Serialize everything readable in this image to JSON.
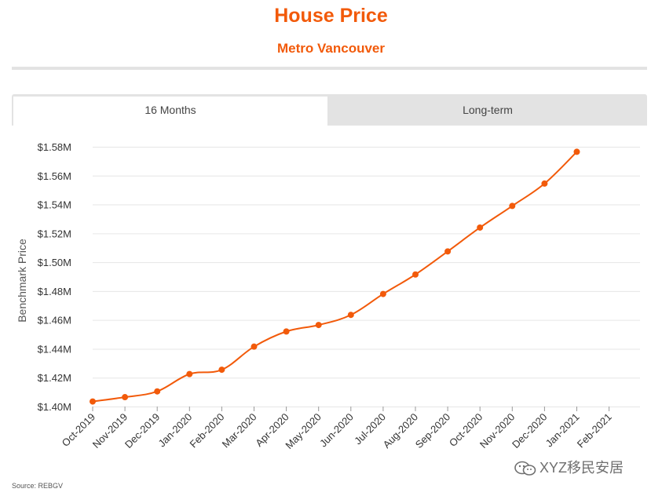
{
  "header": {
    "title": "House Price",
    "subtitle": "Metro Vancouver"
  },
  "tabs": [
    {
      "label": "16 Months",
      "active": true
    },
    {
      "label": "Long-term",
      "active": false
    }
  ],
  "footer": {
    "source": "Source: REBGV",
    "watermark": "XYZ移民安居"
  },
  "colors": {
    "accent": "#f25a0a",
    "grid": "#e6e6e6",
    "tab_bg": "#e3e3e3"
  },
  "chart_data": {
    "type": "line",
    "title": "",
    "xlabel": "",
    "ylabel": "Benchmark Price",
    "categories": [
      "Oct-2019",
      "Nov-2019",
      "Dec-2019",
      "Jan-2020",
      "Feb-2020",
      "Mar-2020",
      "Apr-2020",
      "May-2020",
      "Jun-2020",
      "Jul-2020",
      "Aug-2020",
      "Sep-2020",
      "Oct-2020",
      "Nov-2020",
      "Dec-2020",
      "Jan-2021",
      "Feb-2021"
    ],
    "series": [
      {
        "values": [
          1.4035,
          1.4065,
          1.4105,
          1.4225,
          1.4255,
          1.4415,
          1.452,
          1.4565,
          1.4635,
          1.478,
          1.4915,
          1.5075,
          1.524,
          1.539,
          1.5545,
          1.5765,
          null
        ]
      }
    ],
    "yticks": [
      "$1.40M",
      "$1.42M",
      "$1.44M",
      "$1.46M",
      "$1.48M",
      "$1.50M",
      "$1.52M",
      "$1.54M",
      "$1.56M",
      "$1.58M"
    ],
    "ytick_values": [
      1.4,
      1.42,
      1.44,
      1.46,
      1.48,
      1.5,
      1.52,
      1.54,
      1.56,
      1.58
    ],
    "ylim": [
      1.4,
      1.58
    ],
    "grid": true,
    "legend": "none"
  }
}
